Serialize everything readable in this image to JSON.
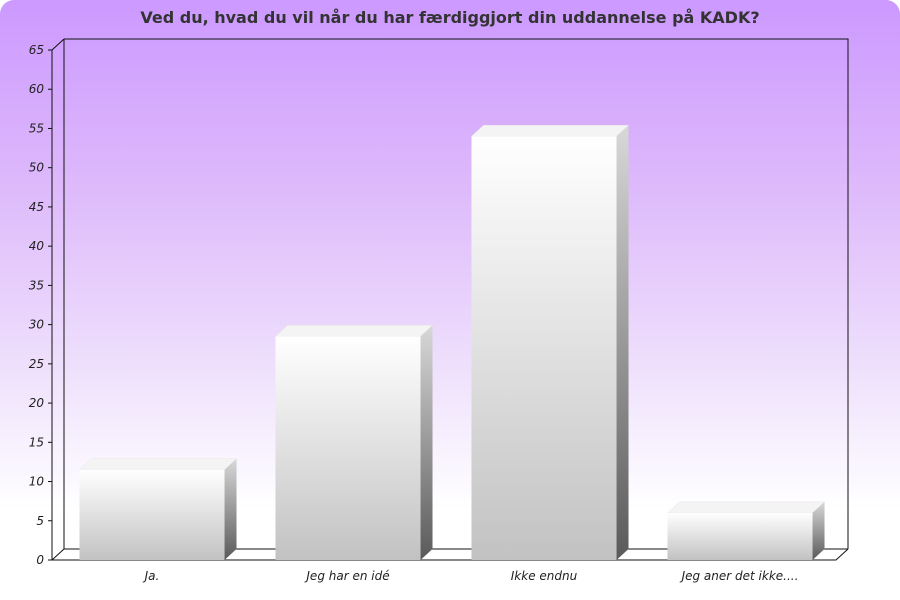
{
  "chart_data": {
    "type": "bar",
    "title": "Ved du, hvad du vil når du har færdiggjort din uddannelse på KADK?",
    "categories": [
      "Ja.",
      "Jeg har en idé",
      "Ikke endnu",
      "Jeg aner det ikke...."
    ],
    "values": [
      11.5,
      28.5,
      54,
      6
    ],
    "xlabel": "",
    "ylabel": "",
    "ylim": [
      0,
      65
    ],
    "yticks": [
      0,
      5,
      10,
      15,
      20,
      25,
      30,
      35,
      40,
      45,
      50,
      55,
      60,
      65
    ],
    "grid": false,
    "legend": "none"
  },
  "colors": {
    "bar_front_top": "#ffffff",
    "bar_front_bottom": "#c2c2c2",
    "bar_side_top": "#d8d8d8",
    "bar_side_bottom": "#5a5a5a",
    "bar_cap": "#f4f4f4",
    "axis": "#111111"
  }
}
